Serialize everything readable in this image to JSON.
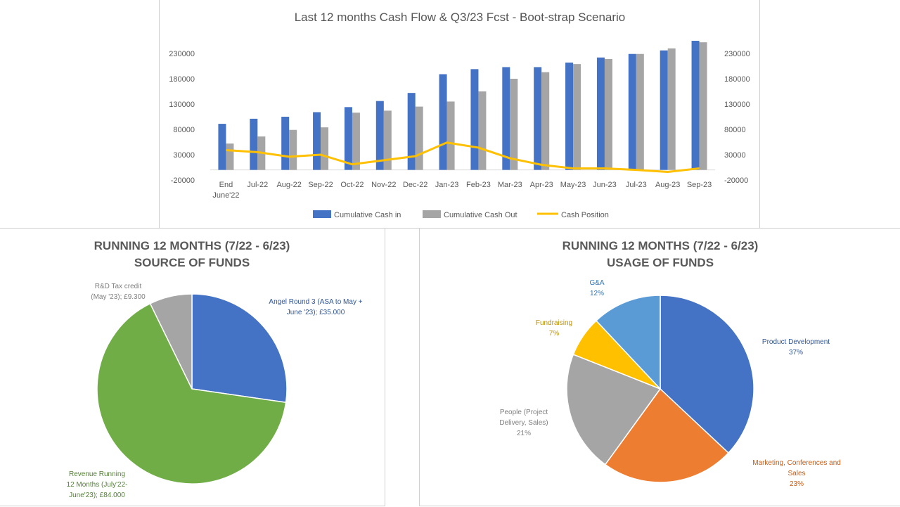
{
  "chart_data": [
    {
      "type": "bar",
      "title": "Last 12 months Cash Flow  & Q3/23 Fcst - Boot-strap Scenario",
      "categories": [
        "End June'22",
        "Jul-22",
        "Aug-22",
        "Sep-22",
        "Oct-22",
        "Nov-22",
        "Dec-22",
        "Jan-23",
        "Feb-23",
        "Mar-23",
        "Apr-23",
        "May-23",
        "Jun-23",
        "Jul-23",
        "Aug-23",
        "Sep-23"
      ],
      "category_lines": [
        [
          "End",
          "June'22"
        ],
        [
          "Jul-22"
        ],
        [
          "Aug-22"
        ],
        [
          "Sep-22"
        ],
        [
          "Oct-22"
        ],
        [
          "Nov-22"
        ],
        [
          "Dec-22"
        ],
        [
          "Jan-23"
        ],
        [
          "Feb-23"
        ],
        [
          "Mar-23"
        ],
        [
          "Apr-23"
        ],
        [
          "May-23"
        ],
        [
          "Jun-23"
        ],
        [
          "Jul-23"
        ],
        [
          "Aug-23"
        ],
        [
          "Sep-23"
        ]
      ],
      "series": [
        {
          "name": "Cumulative Cash in",
          "type": "bar",
          "color": "#4472C4",
          "values": [
            91000,
            101000,
            105000,
            114000,
            124000,
            136000,
            152000,
            189000,
            199000,
            203000,
            203000,
            212000,
            222000,
            229000,
            236000,
            255000
          ]
        },
        {
          "name": "Cumulative Cash Out",
          "type": "bar",
          "color": "#A5A5A5",
          "values": [
            52000,
            66000,
            79000,
            84000,
            113000,
            117000,
            125000,
            135000,
            155000,
            180000,
            193000,
            209000,
            219000,
            229000,
            240000,
            252000
          ]
        },
        {
          "name": "Cash Position",
          "type": "line",
          "color": "#FFC000",
          "values": [
            39000,
            35000,
            26000,
            30000,
            11000,
            19000,
            27000,
            54000,
            44000,
            23000,
            10000,
            3000,
            3000,
            0,
            -4000,
            3000
          ]
        }
      ],
      "ylim": [
        -20000,
        230000
      ],
      "yticks": [
        -20000,
        30000,
        80000,
        130000,
        180000,
        230000
      ],
      "ytick_labels": [
        "-20000",
        "30000",
        "80000",
        "130000",
        "180000",
        "230000"
      ],
      "secondary_axis": true,
      "legend": "bottom",
      "grid": false
    },
    {
      "type": "pie",
      "title_lines": [
        "RUNNING 12 MONTHS (7/22 - 6/23)",
        "SOURCE OF FUNDS"
      ],
      "slices": [
        {
          "label_lines": [
            "Angel Round 3 (ASA to May +",
            "June '23);  £35.000"
          ],
          "value": 35000,
          "color": "#4472C4",
          "label_color": "#2F5597"
        },
        {
          "label_lines": [
            "Revenue Running",
            "12 Months (July'22-",
            "June'23);  £84.000"
          ],
          "value": 84000,
          "color": "#70AD47",
          "label_color": "#548235"
        },
        {
          "label_lines": [
            "R&D Tax credit",
            "(May '23);  £9.300"
          ],
          "value": 9300,
          "color": "#A5A5A5",
          "label_color": "#7F7F7F"
        }
      ]
    },
    {
      "type": "pie",
      "title_lines": [
        "RUNNING 12 MONTHS (7/22 - 6/23)",
        "USAGE OF FUNDS"
      ],
      "slices": [
        {
          "label_lines": [
            "Product Development",
            "37%"
          ],
          "value": 37,
          "color": "#4472C4",
          "label_color": "#2F5597"
        },
        {
          "label_lines": [
            "Marketing, Conferences and",
            "Sales",
            "23%"
          ],
          "value": 23,
          "color": "#ED7D31",
          "label_color": "#C55A11"
        },
        {
          "label_lines": [
            "People (Project",
            "Delivery, Sales)",
            "21%"
          ],
          "value": 21,
          "color": "#A5A5A5",
          "label_color": "#7F7F7F"
        },
        {
          "label_lines": [
            "Fundraising",
            "7%"
          ],
          "value": 7,
          "color": "#FFC000",
          "label_color": "#BF8F00"
        },
        {
          "label_lines": [
            "G&A",
            "12%"
          ],
          "value": 12,
          "color": "#5B9BD5",
          "label_color": "#2E75B6"
        }
      ]
    }
  ]
}
